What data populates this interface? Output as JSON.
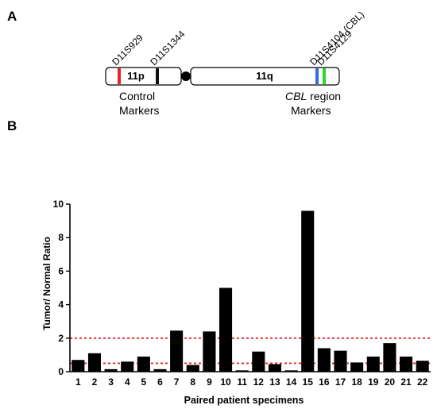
{
  "panel_a": {
    "label": "A",
    "arm_p": "11p",
    "arm_q": "11q",
    "markers": [
      {
        "name": "D11S929",
        "color": "#e8242a"
      },
      {
        "name": "D11S1344",
        "color": "#111111"
      },
      {
        "name": "D11S4104 (CBL)",
        "color": "#2f6de0"
      },
      {
        "name": "D11S4129",
        "color": "#2ed52a"
      }
    ],
    "control_label": [
      "Control",
      "Markers"
    ],
    "cbl_label": {
      "italic": "CBL",
      "rest": " region",
      "line2": "Markers"
    }
  },
  "panel_b": {
    "label": "B"
  },
  "chart_data": {
    "type": "bar",
    "categories": [
      "1",
      "2",
      "3",
      "4",
      "5",
      "6",
      "7",
      "8",
      "9",
      "10",
      "11",
      "12",
      "13",
      "14",
      "15",
      "16",
      "17",
      "18",
      "19",
      "20",
      "21",
      "22"
    ],
    "values": [
      0.7,
      1.1,
      0.15,
      0.6,
      0.9,
      0.15,
      2.45,
      0.4,
      2.4,
      5.0,
      0.08,
      1.2,
      0.45,
      0.08,
      9.6,
      1.4,
      1.25,
      0.55,
      0.9,
      1.7,
      0.9,
      0.65
    ],
    "xlabel": "Paired patient specimens",
    "ylabel": "Tumor/ Normal Ratio",
    "ylim": [
      0,
      10
    ],
    "yticks": [
      0,
      2,
      4,
      6,
      8,
      10
    ],
    "reference_lines": [
      2,
      0.5
    ],
    "reference_color": "#e8242a",
    "bar_color": "#000000",
    "grid": false
  }
}
